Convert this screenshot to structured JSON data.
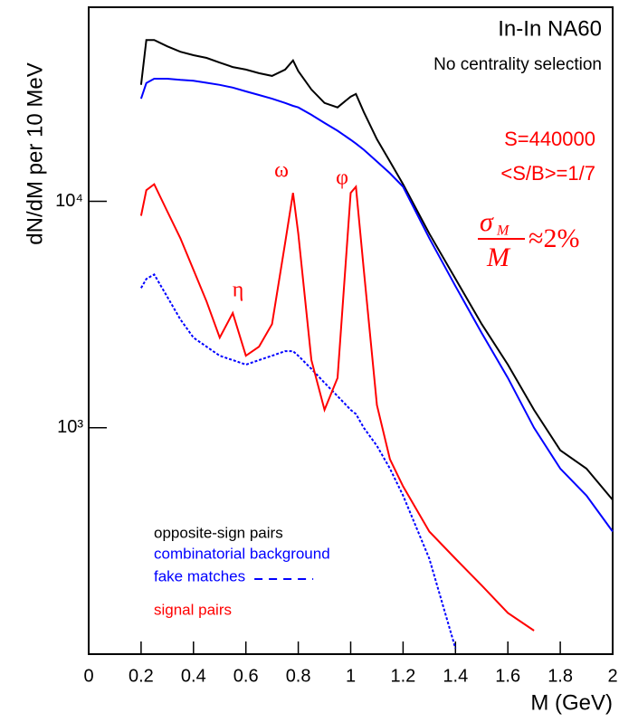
{
  "chart_data": {
    "type": "line",
    "x_label": "M (GeV)",
    "y_label": "dN/dM per 10 MeV",
    "log_y": true,
    "xlim": [
      0,
      2
    ],
    "ylim": [
      100,
      72000
    ],
    "xticks": [
      0,
      0.2,
      0.4,
      0.6,
      0.8,
      1,
      1.2,
      1.4,
      1.6,
      1.8,
      2
    ],
    "yticks": [
      {
        "value": 1000,
        "label": "10³"
      },
      {
        "value": 10000,
        "label": "10⁴"
      }
    ],
    "x": [
      0.2,
      0.22,
      0.25,
      0.3,
      0.35,
      0.4,
      0.45,
      0.5,
      0.55,
      0.6,
      0.65,
      0.7,
      0.75,
      0.78,
      0.8,
      0.85,
      0.9,
      0.95,
      1.0,
      1.02,
      1.05,
      1.1,
      1.15,
      1.2,
      1.3,
      1.4,
      1.5,
      1.6,
      1.7,
      1.8,
      1.9,
      2.0
    ],
    "series": [
      {
        "name": "opposite-sign pairs",
        "color": "#000000",
        "style": "solid",
        "values": [
          32700,
          51600,
          51600,
          48400,
          45800,
          44200,
          43000,
          41000,
          39200,
          38200,
          36800,
          35800,
          38200,
          41900,
          37600,
          31200,
          27200,
          26000,
          29000,
          29800,
          24800,
          18800,
          15000,
          11900,
          7200,
          4550,
          2870,
          1900,
          1200,
          795,
          660,
          480
        ]
      },
      {
        "name": "combinatorial background",
        "color": "#0000ff",
        "style": "solid",
        "values": [
          28400,
          33300,
          34800,
          34800,
          34400,
          34100,
          33400,
          32700,
          31800,
          30600,
          29500,
          28400,
          27200,
          26400,
          26000,
          24100,
          22200,
          20500,
          18700,
          18000,
          16900,
          15000,
          13300,
          11600,
          6870,
          4220,
          2620,
          1660,
          1000,
          660,
          502,
          348
        ]
      },
      {
        "name": "fake matches",
        "color": "#0000ff",
        "style": "dotted",
        "values": [
          4140,
          4540,
          4750,
          3790,
          3010,
          2500,
          2280,
          2080,
          1990,
          1900,
          1990,
          2080,
          2180,
          2180,
          2080,
          1820,
          1580,
          1380,
          1200,
          1150,
          1000,
          832,
          660,
          502,
          264,
          106,
          null,
          null,
          null,
          null,
          null,
          null
        ]
      },
      {
        "name": "signal pairs",
        "color": "#ff0000",
        "style": "solid",
        "values": [
          8630,
          11200,
          11900,
          9040,
          6870,
          4980,
          3610,
          2500,
          3210,
          2080,
          2280,
          2870,
          6560,
          10900,
          7200,
          1990,
          1200,
          1660,
          10900,
          11600,
          4980,
          1260,
          726,
          551,
          348,
          264,
          201,
          152,
          127,
          null,
          null,
          null
        ]
      }
    ],
    "annotations": {
      "title": "In-In  NA60",
      "subtitle": "No centrality selection",
      "signal": "S=440000",
      "ratio": "<S/B>=1/7",
      "resolution": {
        "numerator": "σ",
        "subscript": "M",
        "denominator": "M",
        "rhs": "≈2%"
      },
      "peaks": [
        "ω",
        "φ",
        "η"
      ]
    }
  }
}
